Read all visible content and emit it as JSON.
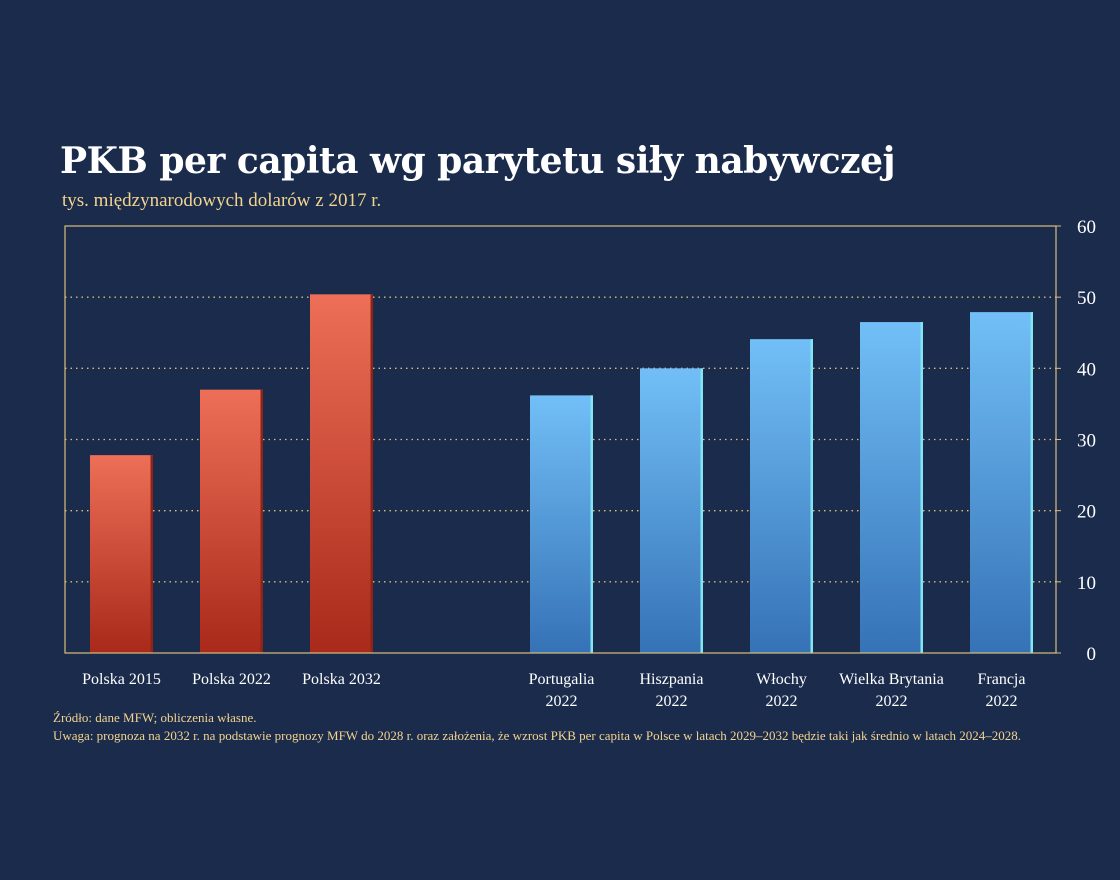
{
  "chart_data": {
    "type": "bar",
    "title": "PKB per capita wg parytetu siły nabywczej",
    "subtitle": "tys. międzynarodowych dolarów z 2017 r.",
    "xlabel": "",
    "ylabel": "",
    "ylim": [
      0,
      60
    ],
    "yticks": [
      0,
      10,
      20,
      30,
      40,
      50,
      60
    ],
    "y_axis_position": "right",
    "grid": "horizontal dotted",
    "categories": [
      [
        "Polska 2015"
      ],
      [
        "Polska 2022"
      ],
      [
        "Polska 2032"
      ],
      [
        "Portugalia",
        "2022"
      ],
      [
        "Hiszpania",
        "2022"
      ],
      [
        "Włochy",
        "2022"
      ],
      [
        "Wielka Brytania",
        "2022"
      ],
      [
        "Francja",
        "2022"
      ]
    ],
    "values": [
      27.8,
      37.0,
      50.4,
      36.2,
      40.0,
      44.1,
      46.5,
      47.9
    ],
    "groups": [
      "poland",
      "poland",
      "poland",
      "other",
      "other",
      "other",
      "other",
      "other"
    ]
  },
  "colors": {
    "background": "#1b2b4c",
    "poland_top": "#ee6f57",
    "poland_bottom": "#a9291a",
    "other_top": "#72bff7",
    "other_bottom": "#3572b6",
    "frame": "#d9be7c"
  },
  "notes": {
    "source": "Źródło: dane MFW; obliczenia własne.",
    "remark": "Uwaga: prognoza na 2032 r. na podstawie prognozy MFW do 2028 r. oraz założenia, że wzrost PKB per capita w Polsce w latach 2029–2032 będzie taki jak średnio w latach 2024–2028."
  }
}
